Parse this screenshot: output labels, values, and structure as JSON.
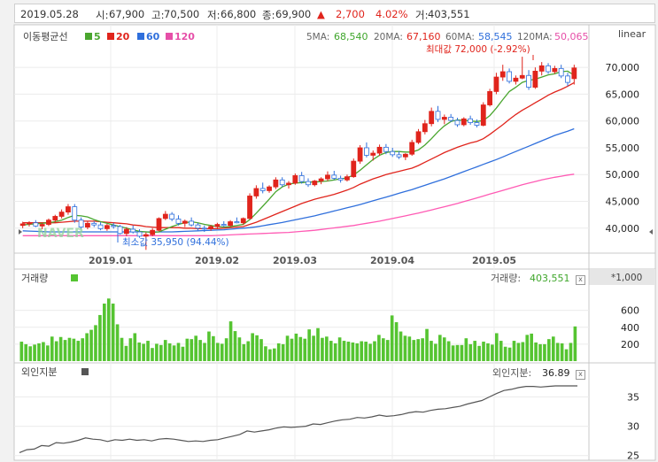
{
  "header": {
    "date": "2019.05.28",
    "open_label": "시:",
    "open": "67,900",
    "high_label": "고:",
    "high": "70,500",
    "low_label": "저:",
    "low": "66,800",
    "close_label": "종:",
    "close": "69,900",
    "up_arrow": "▲",
    "change": "2,700",
    "change_pct": "4.02%",
    "volume_label": "거:",
    "volume": "403,551"
  },
  "price_panel": {
    "legend_title": "이동평균선",
    "legend_items": [
      {
        "label": "5",
        "color": "#4aa62f"
      },
      {
        "label": "20",
        "color": "#e0241c"
      },
      {
        "label": "60",
        "color": "#2f6fdc"
      },
      {
        "label": "120",
        "color": "#e64fa8"
      }
    ],
    "ma_values": [
      {
        "label": "5MA:",
        "value": "68,540",
        "color": "#3fa62b"
      },
      {
        "label": "20MA:",
        "value": "67,160",
        "color": "#e0241c"
      },
      {
        "label": "60MA:",
        "value": "58,545",
        "color": "#2f6fdc"
      },
      {
        "label": "120MA:",
        "value": "50,065",
        "color": "#e64fa8"
      }
    ],
    "scale_label": "linear",
    "max_annotation": "최대값 72,000 (-2.92%)",
    "min_annotation": "최소값 35,950 (94.44%)",
    "watermark": "NAVER"
  },
  "volume_panel": {
    "title": "거래량",
    "readout_label": "거래량:",
    "readout_value": "403,551",
    "unit_label": "*1,000",
    "close_glyph": "x"
  },
  "foreign_panel": {
    "title": "외인지분",
    "readout_label": "외인지분:",
    "readout_value": "36.89",
    "close_glyph": "x"
  },
  "colors": {
    "up": "#e0241c",
    "down": "#2f6fdc",
    "volume": "#55c431",
    "ma5": "#4aa62f",
    "ma20": "#e0241c",
    "ma60": "#2f6fdc",
    "ma120": "#ff5ab4"
  },
  "chart_data": [
    {
      "type": "candlestick",
      "x_ticks": [
        "2019.01",
        "2019.02",
        "2019.03",
        "2019.04",
        "2019.05"
      ],
      "y_ticks": [
        "70,000",
        "65,000",
        "60,000",
        "55,000",
        "50,000",
        "45,000",
        "40,000"
      ],
      "ylim": [
        36000,
        73000
      ],
      "candles": [
        [
          40500,
          41200,
          40000,
          40800
        ],
        [
          40800,
          41300,
          40300,
          41000
        ],
        [
          41000,
          41500,
          40200,
          40400
        ],
        [
          40400,
          41000,
          39800,
          40700
        ],
        [
          40700,
          41800,
          40400,
          41500
        ],
        [
          41500,
          42500,
          41000,
          42200
        ],
        [
          42200,
          43500,
          41800,
          43000
        ],
        [
          43000,
          44500,
          42500,
          44000
        ],
        [
          44000,
          44500,
          41000,
          41500
        ],
        [
          41500,
          42000,
          39800,
          40200
        ],
        [
          40200,
          41200,
          39800,
          40900
        ],
        [
          40900,
          41300,
          40200,
          40600
        ],
        [
          40600,
          41100,
          39600,
          39900
        ],
        [
          39900,
          40800,
          39500,
          40500
        ],
        [
          40500,
          41000,
          39900,
          40300
        ],
        [
          40300,
          40600,
          38800,
          39000
        ],
        [
          39000,
          40200,
          38500,
          39800
        ],
        [
          39800,
          40500,
          39000,
          39300
        ],
        [
          39300,
          39800,
          38200,
          38500
        ],
        [
          38500,
          39200,
          35950,
          38800
        ],
        [
          38800,
          40000,
          38500,
          39600
        ],
        [
          39600,
          42000,
          39400,
          41800
        ],
        [
          41800,
          43200,
          41500,
          42600
        ],
        [
          42600,
          43000,
          41300,
          41700
        ],
        [
          41700,
          42400,
          40500,
          40900
        ],
        [
          40900,
          41600,
          40200,
          41300
        ],
        [
          41300,
          42000,
          40300,
          40600
        ],
        [
          40600,
          41000,
          39600,
          40000
        ],
        [
          40000,
          40500,
          39300,
          39900
        ],
        [
          39900,
          40600,
          39500,
          40300
        ],
        [
          40300,
          41000,
          39900,
          40700
        ],
        [
          40700,
          41300,
          40200,
          40500
        ],
        [
          40500,
          41500,
          40300,
          41200
        ],
        [
          41200,
          42000,
          40900,
          41000
        ],
        [
          41000,
          42000,
          40600,
          41800
        ],
        [
          41800,
          46500,
          41600,
          46000
        ],
        [
          46000,
          48000,
          45500,
          47400
        ],
        [
          47400,
          48500,
          46500,
          47000
        ],
        [
          47000,
          48000,
          46600,
          47700
        ],
        [
          47700,
          49500,
          47300,
          49000
        ],
        [
          49000,
          49500,
          47700,
          48100
        ],
        [
          48100,
          48800,
          47400,
          48400
        ],
        [
          48400,
          50200,
          48100,
          49800
        ],
        [
          49800,
          50500,
          48300,
          48700
        ],
        [
          48700,
          49300,
          47700,
          48100
        ],
        [
          48100,
          49000,
          47800,
          48800
        ],
        [
          48800,
          49500,
          48200,
          49200
        ],
        [
          49200,
          50600,
          48800,
          49900
        ],
        [
          49900,
          50700,
          49000,
          49300
        ],
        [
          49300,
          49800,
          48500,
          49000
        ],
        [
          49000,
          50000,
          48700,
          49600
        ],
        [
          49600,
          53000,
          49400,
          52500
        ],
        [
          52500,
          55500,
          52000,
          55000
        ],
        [
          55000,
          56000,
          53200,
          53600
        ],
        [
          53600,
          54500,
          52600,
          54000
        ],
        [
          54000,
          55600,
          53500,
          55100
        ],
        [
          55100,
          55700,
          53800,
          54300
        ],
        [
          54300,
          55000,
          53300,
          53700
        ],
        [
          53700,
          54400,
          52900,
          53300
        ],
        [
          53300,
          54000,
          52700,
          53800
        ],
        [
          53800,
          56500,
          53500,
          56000
        ],
        [
          56000,
          58500,
          55700,
          58000
        ],
        [
          58000,
          60200,
          57500,
          59500
        ],
        [
          59500,
          62500,
          59000,
          61800
        ],
        [
          61800,
          62800,
          59800,
          60300
        ],
        [
          60300,
          61200,
          59400,
          60700
        ],
        [
          60700,
          61300,
          59800,
          60100
        ],
        [
          60100,
          60600,
          58900,
          59300
        ],
        [
          59300,
          60700,
          59000,
          60400
        ],
        [
          60400,
          61000,
          59300,
          59700
        ],
        [
          59700,
          60300,
          58800,
          59200
        ],
        [
          59200,
          63500,
          59000,
          63000
        ],
        [
          63000,
          66000,
          62700,
          65500
        ],
        [
          65500,
          69000,
          65000,
          68200
        ],
        [
          68200,
          70500,
          67500,
          69200
        ],
        [
          69200,
          69800,
          67000,
          67400
        ],
        [
          67400,
          68500,
          66800,
          68000
        ],
        [
          68000,
          72000,
          67800,
          68500
        ],
        [
          68500,
          69500,
          65800,
          66300
        ],
        [
          66300,
          70000,
          66000,
          69300
        ],
        [
          69300,
          71000,
          68500,
          70300
        ],
        [
          70300,
          70800,
          68800,
          69200
        ],
        [
          69200,
          70300,
          68800,
          69800
        ],
        [
          69800,
          70500,
          68000,
          68400
        ],
        [
          68400,
          69000,
          66500,
          67200
        ],
        [
          67900,
          70500,
          66800,
          69900
        ]
      ],
      "ma5": [
        40600,
        40700,
        40800,
        40900,
        41000,
        41200,
        41500,
        42000,
        42400,
        42300,
        42100,
        41600,
        41200,
        40900,
        40600,
        40300,
        40000,
        39700,
        39400,
        39300,
        39200,
        39300,
        39800,
        40300,
        40700,
        41000,
        41200,
        41000,
        40700,
        40500,
        40300,
        40200,
        40300,
        40500,
        40700,
        41600,
        42800,
        44100,
        45400,
        46800,
        47700,
        48200,
        48400,
        48500,
        48600,
        48600,
        48700,
        48800,
        49000,
        49200,
        49400,
        49900,
        50800,
        51800,
        52800,
        53600,
        54100,
        54300,
        54300,
        54200,
        54200,
        54600,
        55500,
        56700,
        58000,
        59100,
        59900,
        60200,
        60100,
        60000,
        59900,
        60100,
        61000,
        62400,
        64000,
        65500,
        66300,
        67200,
        67600,
        67800,
        68200,
        68600,
        68800,
        69200,
        69300,
        68540
      ],
      "ma20": [
        41000,
        41000,
        41000,
        41000,
        41000,
        41000,
        41100,
        41200,
        41300,
        41300,
        41300,
        41300,
        41200,
        41100,
        41000,
        40900,
        40800,
        40600,
        40500,
        40300,
        40200,
        40100,
        40100,
        40100,
        40100,
        40000,
        40000,
        39900,
        39900,
        39900,
        39900,
        40000,
        40100,
        40200,
        40300,
        40700,
        41100,
        41600,
        42100,
        42600,
        43100,
        43600,
        44100,
        44600,
        45000,
        45400,
        45700,
        46000,
        46300,
        46700,
        47100,
        47600,
        48200,
        48700,
        49200,
        49600,
        50000,
        50300,
        50600,
        50900,
        51200,
        51700,
        52300,
        52900,
        53500,
        54100,
        54600,
        55100,
        55500,
        55900,
        56200,
        56700,
        57500,
        58400,
        59300,
        60300,
        61200,
        62000,
        62700,
        63400,
        64100,
        64800,
        65400,
        65900,
        66500,
        67160
      ],
      "ma60": [
        39500,
        39450,
        39400,
        39350,
        39300,
        39300,
        39300,
        39300,
        39300,
        39300,
        39300,
        39300,
        39300,
        39300,
        39300,
        39300,
        39300,
        39300,
        39300,
        39300,
        39300,
        39300,
        39300,
        39300,
        39350,
        39400,
        39450,
        39500,
        39550,
        39600,
        39650,
        39700,
        39800,
        39900,
        40000,
        40100,
        40250,
        40450,
        40650,
        40850,
        41050,
        41300,
        41550,
        41800,
        42050,
        42300,
        42600,
        42900,
        43200,
        43500,
        43800,
        44100,
        44400,
        44750,
        45100,
        45450,
        45800,
        46150,
        46500,
        46850,
        47200,
        47600,
        48000,
        48400,
        48800,
        49200,
        49650,
        50100,
        50550,
        51000,
        51450,
        51900,
        52350,
        52800,
        53300,
        53800,
        54300,
        54800,
        55300,
        55800,
        56300,
        56800,
        57300,
        57700,
        58100,
        58545
      ],
      "ma120": [
        38600,
        38600,
        38600,
        38600,
        38600,
        38600,
        38600,
        38600,
        38600,
        38600,
        38600,
        38600,
        38600,
        38600,
        38600,
        38600,
        38600,
        38600,
        38600,
        38600,
        38600,
        38600,
        38600,
        38600,
        38600,
        38600,
        38600,
        38600,
        38600,
        38600,
        38650,
        38700,
        38750,
        38800,
        38850,
        38900,
        38950,
        39000,
        39050,
        39100,
        39150,
        39200,
        39300,
        39400,
        39500,
        39600,
        39750,
        39900,
        40050,
        40200,
        40350,
        40500,
        40700,
        40900,
        41100,
        41300,
        41550,
        41800,
        42050,
        42300,
        42550,
        42800,
        43100,
        43400,
        43700,
        44000,
        44300,
        44600,
        44950,
        45300,
        45650,
        46000,
        46350,
        46700,
        47050,
        47400,
        47750,
        48100,
        48400,
        48700,
        49000,
        49250,
        49500,
        49700,
        49900,
        50065
      ]
    },
    {
      "type": "bar",
      "y_ticks": [
        "600",
        "400",
        "200"
      ],
      "ylim": [
        0,
        900
      ],
      "values": [
        230,
        200,
        175,
        195,
        210,
        225,
        185,
        290,
        235,
        285,
        250,
        275,
        265,
        240,
        270,
        330,
        370,
        425,
        545,
        680,
        740,
        680,
        435,
        275,
        180,
        270,
        330,
        220,
        205,
        240,
        155,
        205,
        190,
        250,
        210,
        185,
        215,
        170,
        265,
        260,
        300,
        250,
        215,
        350,
        295,
        215,
        205,
        270,
        470,
        355,
        280,
        200,
        235,
        330,
        305,
        260,
        175,
        140,
        150,
        210,
        200,
        300,
        265,
        325,
        285,
        265,
        375,
        300,
        390,
        275,
        290,
        240,
        210,
        280,
        240,
        230,
        220,
        210,
        235,
        230,
        205,
        235,
        310,
        270,
        250,
        540,
        460,
        350,
        300,
        290,
        250,
        260,
        270,
        380,
        240,
        205,
        310,
        280,
        235,
        185,
        190,
        190,
        270,
        200,
        240,
        180,
        230,
        210,
        195,
        330,
        240,
        170,
        160,
        240,
        215,
        225,
        310,
        325,
        220,
        200,
        200,
        260,
        290,
        215,
        210,
        140,
        215,
        410
      ]
    },
    {
      "type": "line",
      "y_ticks": [
        "35",
        "30",
        "25"
      ],
      "ylim": [
        24.5,
        37.8
      ],
      "values": [
        25.5,
        26.0,
        26.1,
        26.7,
        26.6,
        27.2,
        27.1,
        27.3,
        27.6,
        28.0,
        27.8,
        27.7,
        27.4,
        27.7,
        27.6,
        27.8,
        27.6,
        27.7,
        27.5,
        27.8,
        27.9,
        27.8,
        27.6,
        27.4,
        27.5,
        27.4,
        27.6,
        27.7,
        28.0,
        28.3,
        28.6,
        29.2,
        29.0,
        29.2,
        29.4,
        29.7,
        29.9,
        29.8,
        29.9,
        30.0,
        30.4,
        30.3,
        30.6,
        30.9,
        31.1,
        31.2,
        31.5,
        31.4,
        31.6,
        31.9,
        31.7,
        31.8,
        32.0,
        32.3,
        32.5,
        32.4,
        32.7,
        32.9,
        33.0,
        33.2,
        33.4,
        33.8,
        34.1,
        34.4,
        35.0,
        35.6,
        36.1,
        36.3,
        36.6,
        36.8,
        36.8,
        36.7,
        36.8,
        36.9,
        36.9,
        36.9,
        36.89
      ]
    }
  ]
}
